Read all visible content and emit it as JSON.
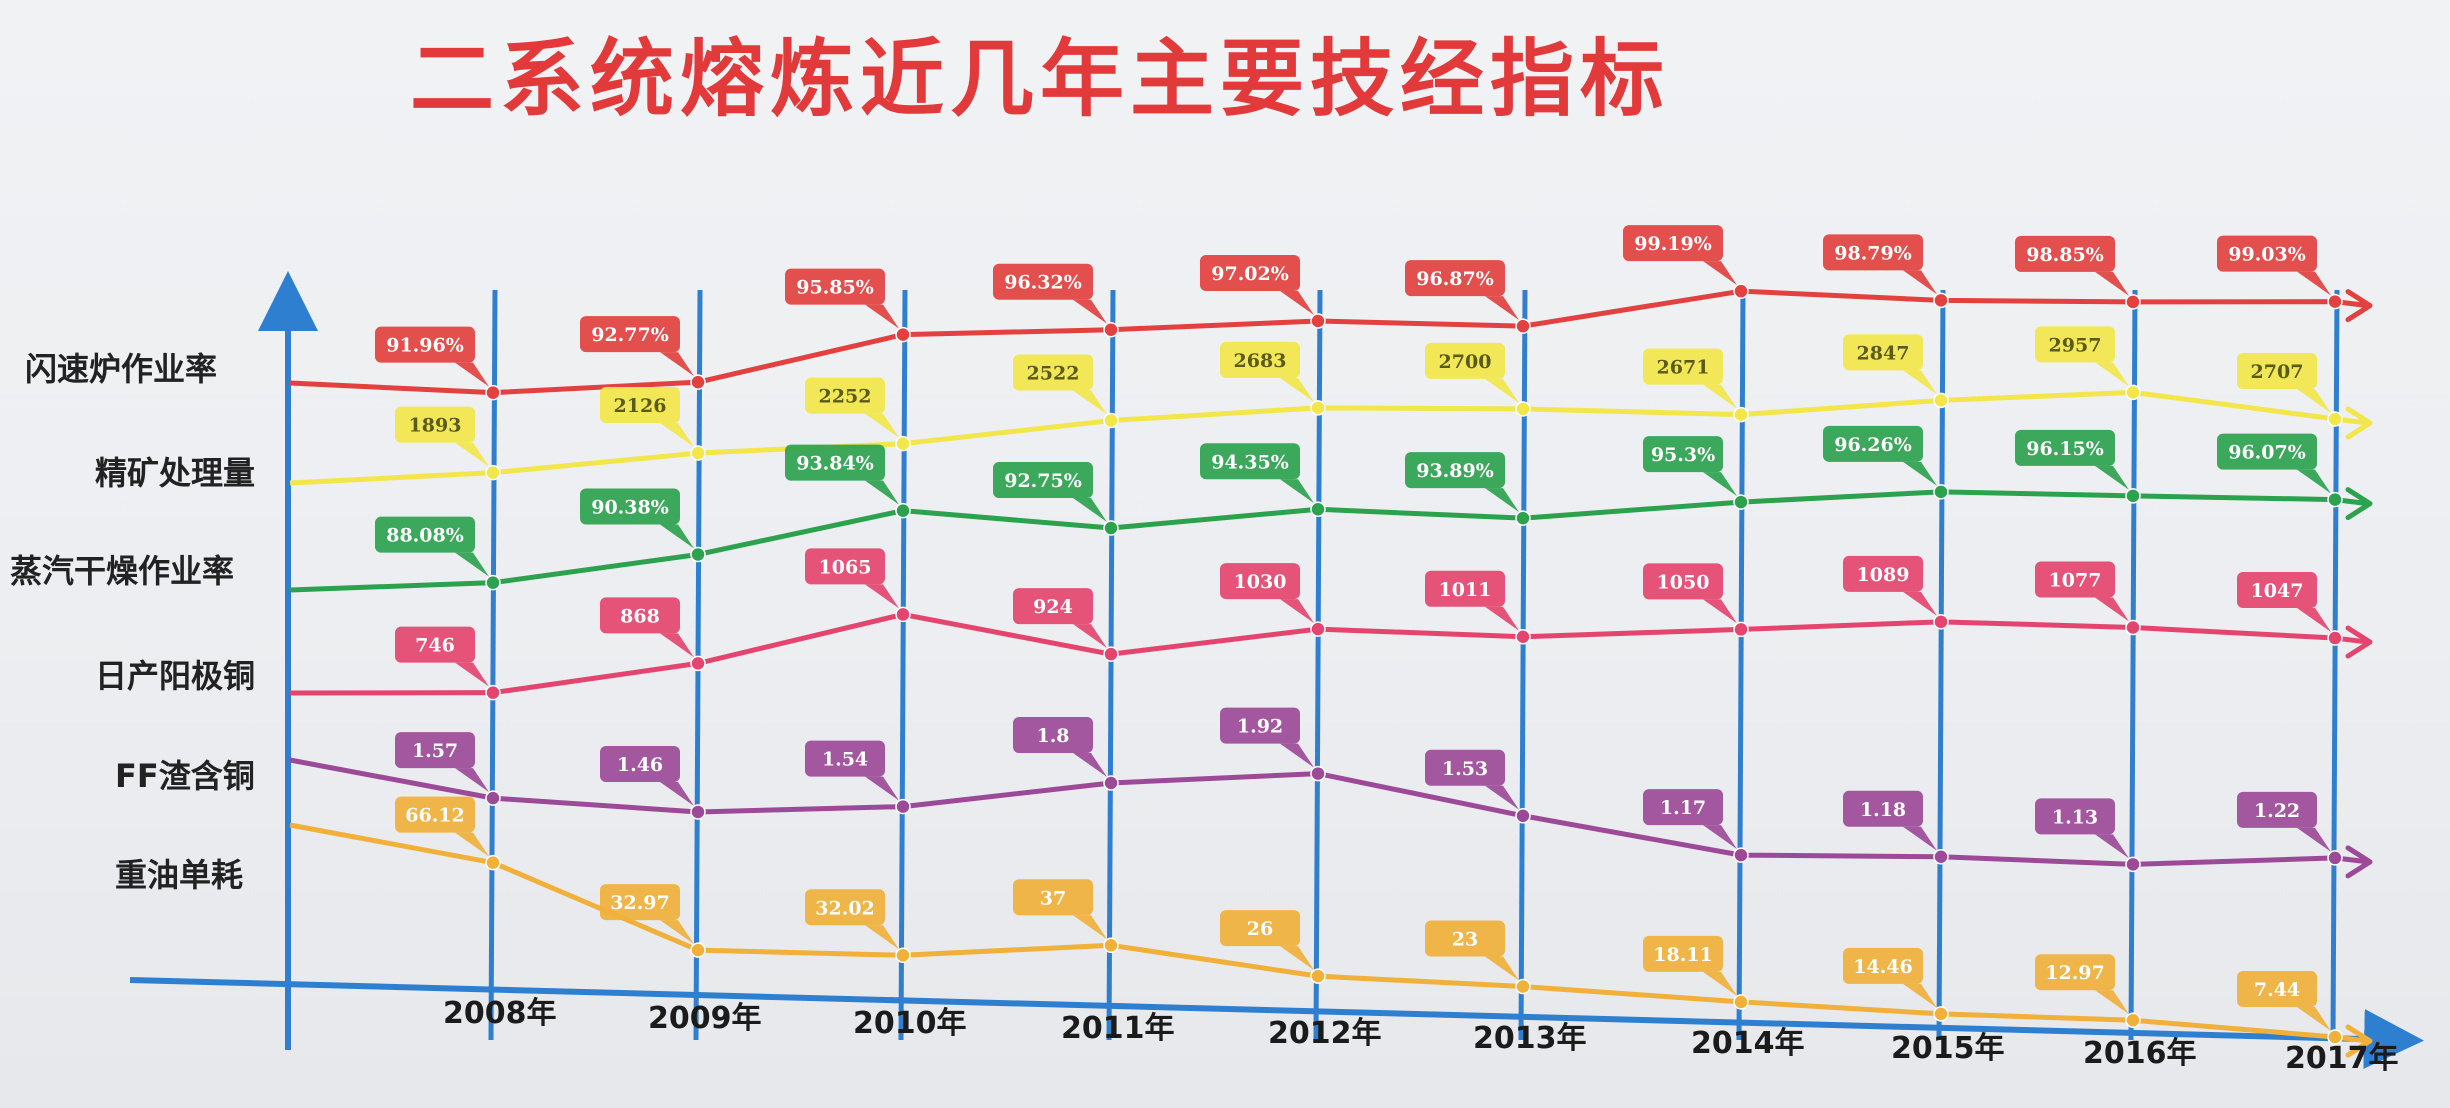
{
  "colors": {
    "axis": "#2f7fd0",
    "background": "#eceef1"
  },
  "chart_data": {
    "type": "line",
    "title": "二系统熔炼近几年主要技经指标",
    "x": [
      "2008年",
      "2009年",
      "2010年",
      "2011年",
      "2012年",
      "2013年",
      "2014年",
      "2015年",
      "2016年",
      "2017年"
    ],
    "series": [
      {
        "name": "闪速炉作业率",
        "color": "#e2413f",
        "labels": [
          "91.96%",
          "92.77%",
          "95.85%",
          "96.32%",
          "97.02%",
          "96.87%",
          "99.19%",
          "98.79%",
          "98.85%",
          "99.03%"
        ],
        "values": [
          91.96,
          92.77,
          95.85,
          96.32,
          97.02,
          96.87,
          99.19,
          98.79,
          98.85,
          99.03
        ]
      },
      {
        "name": "精矿处理量",
        "color": "#f2e64a",
        "labels": [
          "1893",
          "2126",
          "2252",
          "2522",
          "2683",
          "2700",
          "2671",
          "2847",
          "2957",
          "2707"
        ],
        "values": [
          1893,
          2126,
          2252,
          2522,
          2683,
          2700,
          2671,
          2847,
          2957,
          2707
        ]
      },
      {
        "name": "蒸汽干燥作业率",
        "color": "#2ca24e",
        "labels": [
          "88.08%",
          "90.38%",
          "93.84%",
          "92.75%",
          "94.35%",
          "93.89%",
          "95.3%",
          "96.26%",
          "96.15%",
          "96.07%"
        ],
        "values": [
          88.08,
          90.38,
          93.84,
          92.75,
          94.35,
          93.89,
          95.3,
          96.26,
          96.15,
          96.07
        ]
      },
      {
        "name": "日产阳极铜",
        "color": "#e4456f",
        "labels": [
          "746",
          "868",
          "1065",
          "924",
          "1030",
          "1011",
          "1050",
          "1089",
          "1077",
          "1047"
        ],
        "values": [
          746,
          868,
          1065,
          924,
          1030,
          1011,
          1050,
          1089,
          1077,
          1047
        ]
      },
      {
        "name": "FF渣含铜",
        "color": "#9c4a98",
        "labels": [
          "1.57",
          "1.46",
          "1.54",
          "1.8",
          "1.92",
          "1.53",
          "1.17",
          "1.18",
          "1.13",
          "1.22"
        ],
        "values": [
          1.57,
          1.46,
          1.54,
          1.8,
          1.92,
          1.53,
          1.17,
          1.18,
          1.13,
          1.22
        ]
      },
      {
        "name": "重油单耗",
        "color": "#f0b03a",
        "labels": [
          "66.12",
          "32.97",
          "32.02",
          "37",
          "26",
          "23",
          "18.11",
          "14.46",
          "12.97",
          "7.44"
        ],
        "values": [
          66.12,
          32.97,
          32.02,
          37,
          26,
          23,
          18.11,
          14.46,
          12.97,
          7.44
        ]
      }
    ]
  }
}
